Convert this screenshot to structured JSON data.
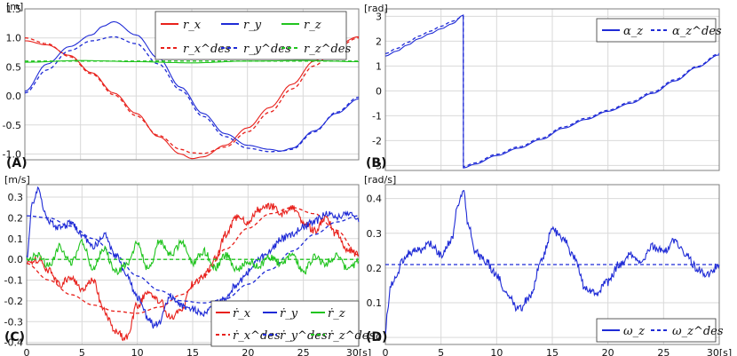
{
  "chart_data": [
    {
      "id": "A",
      "type": "line",
      "panel_label": "(A)",
      "unit": "[m]",
      "xlim": [
        0,
        30
      ],
      "ylim": [
        -1.1,
        1.5
      ],
      "x_ticks": [],
      "y_ticks": [
        "1.5",
        "1.0",
        "0.5",
        "0.0",
        "-0.5",
        "-1.0"
      ],
      "y_tick_values": [
        1.5,
        1.0,
        0.5,
        0.0,
        -0.5,
        -1.0
      ],
      "legend": {
        "placement": "top-center",
        "entries": [
          "r_x",
          "r_y",
          "r_z",
          "r_x^des",
          "r_y^des",
          "r_z^des"
        ]
      },
      "series": [
        {
          "name": "r_x",
          "color": "#e8211c",
          "dash": false,
          "x": [
            0,
            2,
            4,
            6,
            8,
            10,
            12,
            14,
            15,
            16,
            18,
            20,
            22,
            24,
            26,
            28,
            30
          ],
          "y": [
            0.95,
            0.88,
            0.7,
            0.4,
            0.05,
            -0.3,
            -0.7,
            -1.0,
            -1.08,
            -1.05,
            -0.85,
            -0.55,
            -0.2,
            0.2,
            0.6,
            0.88,
            1.02
          ]
        },
        {
          "name": "r_x^des",
          "color": "#e8211c",
          "dash": true,
          "x": [
            0,
            2,
            4,
            6,
            8,
            10,
            12,
            14,
            15,
            16,
            18,
            20,
            22,
            24,
            26,
            28,
            30
          ],
          "y": [
            1.0,
            0.9,
            0.68,
            0.38,
            0.02,
            -0.34,
            -0.68,
            -0.92,
            -0.98,
            -0.99,
            -0.88,
            -0.62,
            -0.28,
            0.12,
            0.52,
            0.84,
            1.0
          ]
        },
        {
          "name": "r_y",
          "color": "#1f2bd6",
          "dash": false,
          "x": [
            0,
            2,
            4,
            6,
            7,
            8,
            10,
            12,
            14,
            16,
            18,
            20,
            22,
            23,
            24,
            26,
            28,
            30
          ],
          "y": [
            0.08,
            0.55,
            0.85,
            1.05,
            1.2,
            1.28,
            1.05,
            0.65,
            0.15,
            -0.3,
            -0.65,
            -0.85,
            -0.92,
            -0.95,
            -0.9,
            -0.6,
            -0.3,
            -0.05
          ]
        },
        {
          "name": "r_y^des",
          "color": "#1f2bd6",
          "dash": true,
          "x": [
            0,
            2,
            4,
            6,
            8,
            10,
            12,
            14,
            16,
            18,
            20,
            22,
            23,
            24,
            26,
            28,
            30
          ],
          "y": [
            0.05,
            0.45,
            0.78,
            0.95,
            1.02,
            0.9,
            0.55,
            0.1,
            -0.35,
            -0.7,
            -0.9,
            -0.96,
            -0.95,
            -0.92,
            -0.62,
            -0.28,
            -0.02
          ]
        },
        {
          "name": "r_z",
          "color": "#21c41f",
          "dash": false,
          "x": [
            0,
            5,
            10,
            15,
            20,
            25,
            30
          ],
          "y": [
            0.58,
            0.61,
            0.59,
            0.57,
            0.6,
            0.61,
            0.59
          ]
        },
        {
          "name": "r_z^des",
          "color": "#21c41f",
          "dash": true,
          "x": [
            0,
            30
          ],
          "y": [
            0.6,
            0.6
          ]
        }
      ]
    },
    {
      "id": "B",
      "type": "line",
      "panel_label": "(B)",
      "unit": "[rad]",
      "xlim": [
        0,
        30
      ],
      "ylim": [
        -3.2,
        3.3
      ],
      "x_ticks": [],
      "y_ticks": [
        "3",
        "2",
        "1",
        "0",
        "-1",
        "-2",
        "-3"
      ],
      "y_tick_values": [
        3,
        2,
        1,
        0,
        -1,
        -2,
        -3
      ],
      "legend": {
        "placement": "top-right",
        "entries": [
          "α_z",
          "α_z^des"
        ]
      },
      "series": [
        {
          "name": "α_z",
          "color": "#1f2bd6",
          "dash": false,
          "x": [
            0,
            1,
            2,
            3,
            4,
            5,
            6,
            7,
            7.01,
            8,
            10,
            12,
            14,
            16,
            18,
            20,
            22,
            24,
            26,
            28,
            30
          ],
          "y": [
            1.4,
            1.6,
            1.85,
            2.1,
            2.3,
            2.5,
            2.7,
            3.05,
            -3.1,
            -2.95,
            -2.6,
            -2.3,
            -1.95,
            -1.5,
            -1.15,
            -0.82,
            -0.5,
            -0.1,
            0.4,
            0.95,
            1.45
          ]
        },
        {
          "name": "α_z^des",
          "color": "#1f2bd6",
          "dash": true,
          "x": [
            0,
            1,
            2,
            3,
            4,
            5,
            6,
            7,
            7.01,
            8,
            10,
            12,
            14,
            16,
            18,
            20,
            22,
            24,
            26,
            28,
            30
          ],
          "y": [
            1.5,
            1.7,
            1.95,
            2.2,
            2.4,
            2.6,
            2.8,
            3.0,
            -3.05,
            -2.9,
            -2.55,
            -2.25,
            -1.9,
            -1.45,
            -1.1,
            -0.78,
            -0.45,
            -0.05,
            0.45,
            0.98,
            1.5
          ]
        }
      ]
    },
    {
      "id": "C",
      "type": "line",
      "panel_label": "(C)",
      "unit": "[m/s]",
      "xlim": [
        0,
        30
      ],
      "ylim": [
        -0.41,
        0.36
      ],
      "x_ticks": [
        "0",
        "5",
        "10",
        "15",
        "20",
        "25",
        "30[s]"
      ],
      "x_tick_values": [
        0,
        5,
        10,
        15,
        20,
        25,
        30
      ],
      "y_ticks": [
        "0.3",
        "0.2",
        "0.1",
        "0.0",
        "-0.1",
        "-0.2",
        "-0.3",
        "-0.4"
      ],
      "y_tick_values": [
        0.3,
        0.2,
        0.1,
        0.0,
        -0.1,
        -0.2,
        -0.3,
        -0.4
      ],
      "legend": {
        "placement": "bottom-right",
        "entries": [
          "ṙ_x",
          "ṙ_y",
          "ṙ_z",
          "ṙ_x^des",
          "ṙ_y^des",
          "ṙ_z^des"
        ]
      },
      "series": [
        {
          "name": "ṙ_x",
          "color": "#e8211c",
          "dash": false,
          "x": [
            0,
            1,
            2,
            3,
            4,
            5,
            6,
            7,
            8,
            9,
            10,
            11,
            12,
            13,
            14,
            15,
            16,
            17,
            18,
            19,
            20,
            21,
            22,
            23,
            24,
            25,
            26,
            27,
            28,
            29,
            30
          ],
          "y": [
            -0.02,
            0.0,
            -0.05,
            -0.12,
            -0.08,
            -0.15,
            -0.1,
            -0.25,
            -0.35,
            -0.38,
            -0.22,
            -0.15,
            -0.2,
            -0.28,
            -0.24,
            -0.12,
            -0.08,
            0.0,
            0.12,
            0.2,
            0.18,
            0.24,
            0.26,
            0.22,
            0.25,
            0.18,
            0.14,
            0.2,
            0.12,
            0.05,
            0.02
          ]
        },
        {
          "name": "ṙ_x^des",
          "color": "#e8211c",
          "dash": true,
          "x": [
            0,
            2,
            4,
            6,
            8,
            10,
            12,
            14,
            16,
            18,
            20,
            22,
            24,
            26,
            28,
            30
          ],
          "y": [
            -0.02,
            -0.1,
            -0.17,
            -0.22,
            -0.25,
            -0.26,
            -0.23,
            -0.17,
            -0.08,
            0.05,
            0.15,
            0.22,
            0.25,
            0.22,
            0.14,
            0.02
          ]
        },
        {
          "name": "ṙ_y",
          "color": "#1f2bd6",
          "dash": false,
          "x": [
            0,
            0.5,
            1,
            2,
            3,
            4,
            5,
            6,
            7,
            8,
            9,
            10,
            11,
            11.5,
            12,
            13,
            14,
            15,
            16,
            17,
            18,
            19,
            20,
            21,
            22,
            23,
            24,
            25,
            26,
            27,
            28,
            29,
            30
          ],
          "y": [
            0.0,
            0.26,
            0.33,
            0.18,
            0.15,
            0.18,
            0.12,
            0.06,
            0.12,
            0.02,
            -0.08,
            -0.18,
            -0.28,
            -0.32,
            -0.3,
            -0.18,
            -0.22,
            -0.24,
            -0.26,
            -0.22,
            -0.18,
            -0.12,
            -0.06,
            0.0,
            0.04,
            0.1,
            0.12,
            0.16,
            0.18,
            0.22,
            0.2,
            0.22,
            0.18
          ]
        },
        {
          "name": "ṙ_y^des",
          "color": "#1f2bd6",
          "dash": true,
          "x": [
            0,
            2,
            4,
            6,
            8,
            10,
            12,
            14,
            16,
            18,
            20,
            22,
            24,
            26,
            28,
            30
          ],
          "y": [
            0.21,
            0.2,
            0.16,
            0.1,
            0.02,
            -0.08,
            -0.15,
            -0.2,
            -0.21,
            -0.19,
            -0.12,
            -0.05,
            0.04,
            0.12,
            0.18,
            0.21
          ]
        },
        {
          "name": "ṙ_z",
          "color": "#21c41f",
          "dash": false,
          "x": [
            0,
            1,
            2,
            3,
            4,
            5,
            6,
            7,
            8,
            9,
            10,
            11,
            12,
            13,
            14,
            15,
            16,
            17,
            18,
            19,
            20,
            21,
            22,
            23,
            24,
            25,
            26,
            27,
            28,
            29,
            30
          ],
          "y": [
            0.0,
            0.02,
            -0.03,
            0.06,
            -0.02,
            0.08,
            -0.04,
            0.05,
            -0.06,
            -0.03,
            0.08,
            -0.05,
            0.09,
            0.02,
            0.08,
            -0.02,
            0.04,
            -0.04,
            0.02,
            -0.05,
            -0.01,
            -0.03,
            0.01,
            -0.02,
            0.02,
            -0.06,
            0.01,
            -0.02,
            0.02,
            -0.05,
            -0.01
          ]
        },
        {
          "name": "ṙ_z^des",
          "color": "#21c41f",
          "dash": true,
          "x": [
            0,
            30
          ],
          "y": [
            0.0,
            0.0
          ]
        }
      ]
    },
    {
      "id": "D",
      "type": "line",
      "panel_label": "(D)",
      "unit": "[rad/s]",
      "xlim": [
        0,
        30
      ],
      "ylim": [
        -0.02,
        0.44
      ],
      "x_ticks": [
        "0",
        "5",
        "10",
        "15",
        "20",
        "25",
        "30[s]"
      ],
      "x_tick_values": [
        0,
        5,
        10,
        15,
        20,
        25,
        30
      ],
      "y_ticks": [
        "0.4",
        "0.3",
        "0.2",
        "0.1",
        "0"
      ],
      "y_tick_values": [
        0.4,
        0.3,
        0.2,
        0.1,
        0.0
      ],
      "legend": {
        "placement": "bottom-right",
        "entries": [
          "ω_z",
          "ω_z^des"
        ]
      },
      "series": [
        {
          "name": "ω_z",
          "color": "#1f2bd6",
          "dash": false,
          "x": [
            0,
            0.2,
            0.5,
            1,
            1.5,
            2,
            3,
            4,
            5,
            6,
            6.5,
            7,
            7.5,
            8,
            9,
            10,
            11,
            12,
            13,
            14,
            15,
            16,
            17,
            18,
            19,
            20,
            21,
            22,
            23,
            24,
            25,
            26,
            27,
            28,
            29,
            30
          ],
          "y": [
            0.0,
            0.08,
            0.15,
            0.18,
            0.22,
            0.24,
            0.25,
            0.27,
            0.24,
            0.28,
            0.38,
            0.42,
            0.32,
            0.25,
            0.22,
            0.18,
            0.12,
            0.08,
            0.12,
            0.22,
            0.31,
            0.28,
            0.23,
            0.14,
            0.13,
            0.16,
            0.21,
            0.24,
            0.22,
            0.26,
            0.25,
            0.28,
            0.24,
            0.2,
            0.18,
            0.21
          ]
        },
        {
          "name": "ω_z^des",
          "color": "#1f2bd6",
          "dash": true,
          "x": [
            0,
            30
          ],
          "y": [
            0.21,
            0.21
          ]
        }
      ]
    }
  ]
}
